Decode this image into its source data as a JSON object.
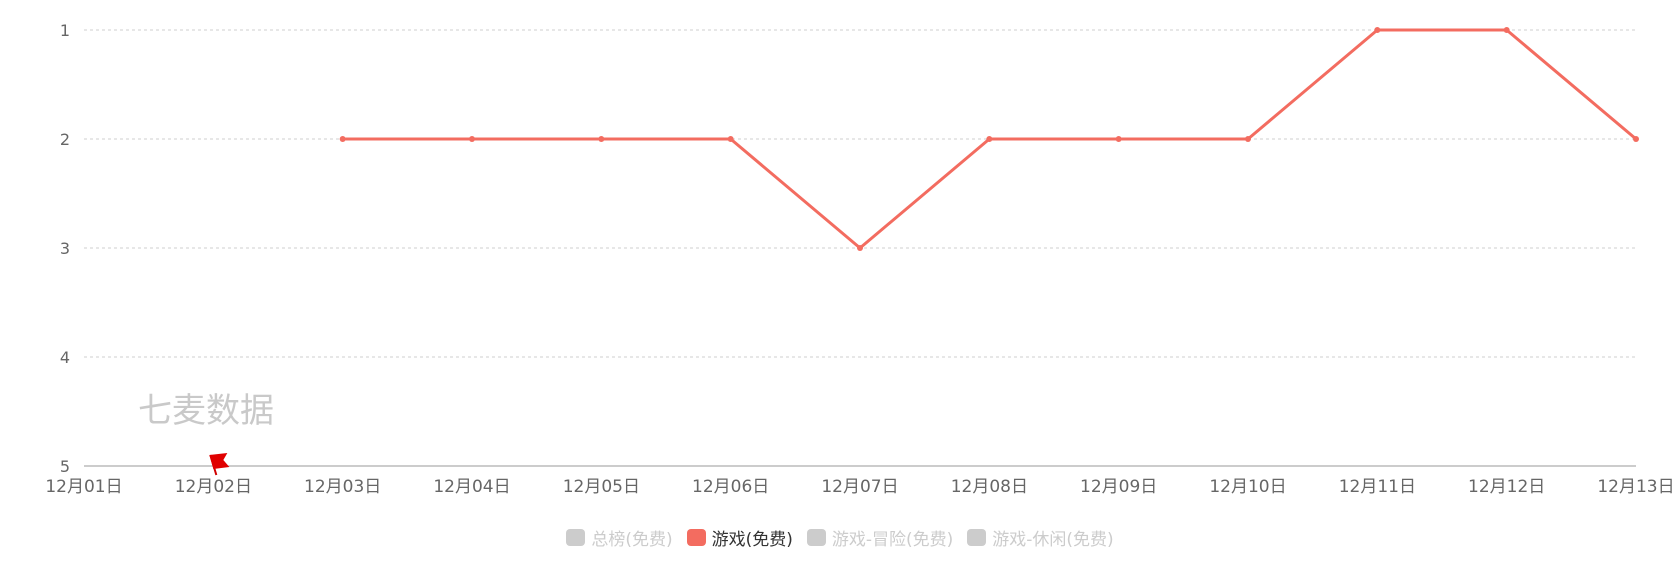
{
  "watermark": "七麦数据",
  "colors": {
    "series": "#f36c60",
    "inactive": "#cccccc"
  },
  "chart_data": {
    "type": "line",
    "x": [
      "12月01日",
      "12月02日",
      "12月03日",
      "12月04日",
      "12月05日",
      "12月06日",
      "12月07日",
      "12月08日",
      "12月09日",
      "12月10日",
      "12月11日",
      "12月12日",
      "12月13日"
    ],
    "y_ticks": [
      "1",
      "2",
      "3",
      "4",
      "5"
    ],
    "ylim": [
      1,
      5
    ],
    "y_inverted": true,
    "grid": true,
    "legend_position": "bottom-center",
    "series": [
      {
        "name": "游戏(免费)",
        "values": [
          null,
          null,
          2,
          2,
          2,
          2,
          3,
          2,
          2,
          2,
          1,
          1,
          2
        ]
      }
    ],
    "legend": [
      {
        "label": "总榜(免费)",
        "active": false
      },
      {
        "label": "游戏(免费)",
        "active": true
      },
      {
        "label": "游戏-冒险(免费)",
        "active": false
      },
      {
        "label": "游戏-休闲(免费)",
        "active": false
      }
    ],
    "annotations": [
      {
        "type": "flag-icon",
        "x": "12月02日"
      }
    ]
  }
}
